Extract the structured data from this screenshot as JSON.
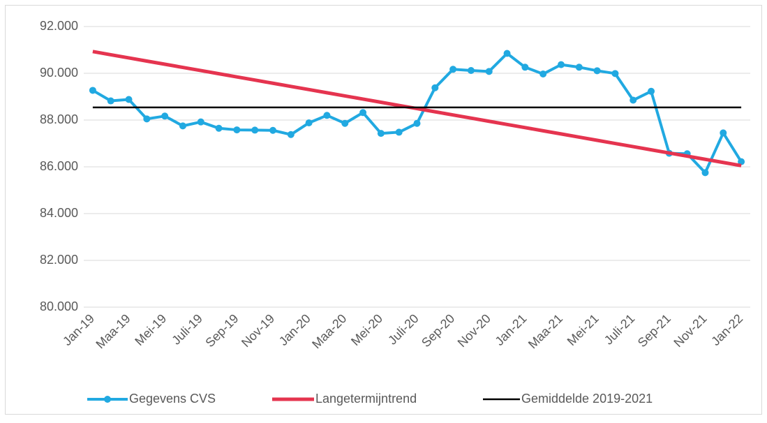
{
  "chart_data": {
    "type": "line",
    "categories": [
      "Jan-19",
      null,
      "Maa-19",
      null,
      "Mei-19",
      null,
      "Juli-19",
      null,
      "Sep-19",
      null,
      "Nov-19",
      null,
      "Jan-20",
      null,
      "Maa-20",
      null,
      "Mei-20",
      null,
      "Juli-20",
      null,
      "Sep-20",
      null,
      "Nov-20",
      null,
      "Jan-21",
      null,
      "Maa-21",
      null,
      "Mei-21",
      null,
      "Juli-21",
      null,
      "Sep-21",
      null,
      "Nov-21",
      null,
      "Jan-22"
    ],
    "series": [
      {
        "name": "Gegevens CVS",
        "color": "#21a9e1",
        "marker": true,
        "values": [
          89270,
          88820,
          88880,
          88050,
          88170,
          87750,
          87920,
          87650,
          87580,
          87570,
          87560,
          87380,
          87880,
          88200,
          87860,
          88320,
          87430,
          87480,
          87860,
          89380,
          90170,
          90120,
          90080,
          90850,
          90260,
          89970,
          90370,
          90260,
          90110,
          89990,
          88850,
          89230,
          86580,
          86560,
          85750,
          87450,
          86220
        ]
      },
      {
        "name": "Langetermijntrend",
        "color": "#e5344f",
        "marker": false,
        "values": [
          90930,
          90794,
          90659,
          90523,
          90388,
          90252,
          90117,
          89981,
          89846,
          89710,
          89574,
          89439,
          89303,
          89168,
          89032,
          88897,
          88761,
          88626,
          88490,
          88354,
          88219,
          88083,
          87948,
          87812,
          87677,
          87541,
          87406,
          87270,
          87134,
          86999,
          86863,
          86728,
          86592,
          86457,
          86321,
          86186,
          86050
        ]
      },
      {
        "name": "Gemiddelde 2019-2021",
        "color": "#000000",
        "marker": false,
        "values": [
          88540,
          88540,
          88540,
          88540,
          88540,
          88540,
          88540,
          88540,
          88540,
          88540,
          88540,
          88540,
          88540,
          88540,
          88540,
          88540,
          88540,
          88540,
          88540,
          88540,
          88540,
          88540,
          88540,
          88540,
          88540,
          88540,
          88540,
          88540,
          88540,
          88540,
          88540,
          88540,
          88540,
          88540,
          88540,
          88540,
          88540
        ]
      }
    ],
    "ylim": [
      80000,
      92000
    ],
    "yticks": [
      {
        "value": 80000,
        "label": "80.000"
      },
      {
        "value": 82000,
        "label": "82.000"
      },
      {
        "value": 84000,
        "label": "84.000"
      },
      {
        "value": 86000,
        "label": "86.000"
      },
      {
        "value": 88000,
        "label": "88.000"
      },
      {
        "value": 90000,
        "label": "90.000"
      },
      {
        "value": 92000,
        "label": "92.000"
      }
    ],
    "grid": true,
    "legend": "bottom"
  }
}
